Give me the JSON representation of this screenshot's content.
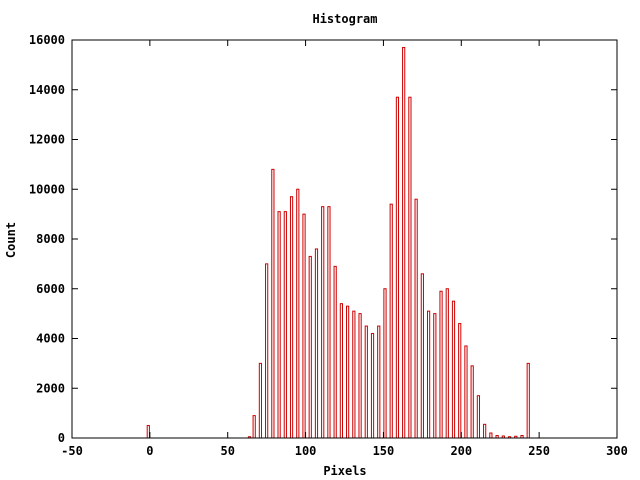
{
  "chart_data": {
    "type": "bar",
    "title": "Histogram",
    "xlabel": "Pixels",
    "ylabel": "Count",
    "xlim": [
      -50,
      300
    ],
    "ylim": [
      0,
      16000
    ],
    "xticks": [
      -50,
      0,
      50,
      100,
      150,
      200,
      250,
      300
    ],
    "yticks": [
      0,
      2000,
      4000,
      6000,
      8000,
      10000,
      12000,
      14000,
      16000
    ],
    "bar_color": "#cc0000",
    "grid": false,
    "x": [
      -1,
      64,
      67,
      71,
      75,
      79,
      83,
      87,
      91,
      95,
      99,
      103,
      107,
      111,
      115,
      119,
      123,
      127,
      131,
      135,
      139,
      143,
      147,
      151,
      155,
      159,
      163,
      167,
      171,
      175,
      179,
      183,
      187,
      191,
      195,
      199,
      203,
      207,
      211,
      215,
      219,
      223,
      227,
      231,
      235,
      239,
      243,
      251
    ],
    "values": [
      500,
      50,
      900,
      3000,
      7000,
      10800,
      9100,
      9100,
      9700,
      10000,
      9000,
      7300,
      7600,
      9300,
      9300,
      6900,
      5400,
      5300,
      5100,
      5000,
      4500,
      4200,
      4500,
      6000,
      9400,
      13700,
      15700,
      13700,
      9600,
      6600,
      5100,
      5000,
      5900,
      6000,
      5500,
      4600,
      3700,
      2900,
      1700,
      550,
      200,
      100,
      80,
      50,
      70,
      100,
      3000,
      0
    ]
  }
}
